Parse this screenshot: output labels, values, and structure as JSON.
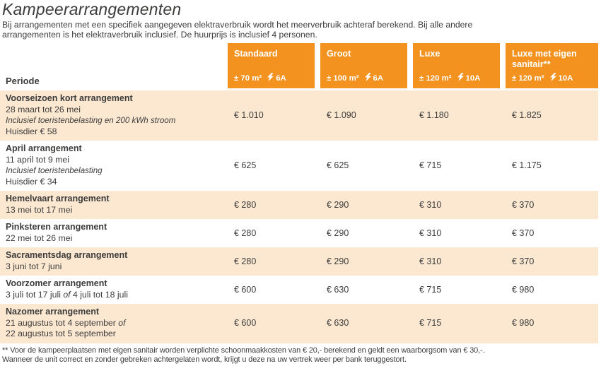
{
  "page": {
    "title": "Kampeerarrangementen",
    "intro_line1": "Bij arrangementen met een specifiek aangegeven elektraverbruik wordt het meerverbruik achteraf berekend. Bij alle andere",
    "intro_line2": "arrangementen is het elektraverbruik inclusief. De huurprijs is inclusief 4 personen.",
    "footnote_line1": "** Voor de kampeerplaatsen met eigen sanitair worden verplichte schoonmaakkosten van € 20,- berekend en geldt een waarborgsom van € 30,-.",
    "footnote_line2": "Wanneer de unit correct en zonder gebreken achtergelaten wordt, krijgt u deze na uw vertrek weer per bank teruggestort."
  },
  "table": {
    "period_header": "Periode",
    "columns": [
      {
        "name": "Standaard",
        "area": "± 70 m²",
        "amps": "6A"
      },
      {
        "name": "Groot",
        "area": "± 100 m²",
        "amps": "6A"
      },
      {
        "name": "Luxe",
        "area": "± 120 m²",
        "amps": "10A"
      },
      {
        "name": "Luxe met eigen sanitair**",
        "area": "± 120 m²",
        "amps": "10A"
      }
    ],
    "rows": [
      {
        "lines": [
          {
            "style": "title",
            "segments": [
              {
                "text": "Voorseizoen kort arrangement"
              }
            ]
          },
          {
            "style": "normal",
            "segments": [
              {
                "text": "28 maart tot 26 mei"
              }
            ]
          },
          {
            "style": "italic",
            "segments": [
              {
                "text": "Inclusief toeristenbelasting en 200 kWh stroom"
              }
            ]
          },
          {
            "style": "normal",
            "segments": [
              {
                "text": "Huisdier € 58"
              }
            ]
          }
        ],
        "prices": [
          "€ 1.010",
          "€ 1.090",
          "€ 1.180",
          "€ 1.825"
        ]
      },
      {
        "lines": [
          {
            "style": "title",
            "segments": [
              {
                "text": "April arrangement"
              }
            ]
          },
          {
            "style": "normal",
            "segments": [
              {
                "text": "11 april tot 9 mei"
              }
            ]
          },
          {
            "style": "italic",
            "segments": [
              {
                "text": "Inclusief toeristenbelasting"
              }
            ]
          },
          {
            "style": "normal",
            "segments": [
              {
                "text": "Huisdier € 34"
              }
            ]
          }
        ],
        "prices": [
          "€ 625",
          "€ 625",
          "€ 715",
          "€ 1.175"
        ]
      },
      {
        "lines": [
          {
            "style": "title",
            "segments": [
              {
                "text": "Hemelvaart arrangement"
              }
            ]
          },
          {
            "style": "normal",
            "segments": [
              {
                "text": "13 mei tot 17 mei"
              }
            ]
          }
        ],
        "prices": [
          "€ 280",
          "€ 290",
          "€ 310",
          "€ 370"
        ]
      },
      {
        "lines": [
          {
            "style": "title",
            "segments": [
              {
                "text": "Pinksteren arrangement"
              }
            ]
          },
          {
            "style": "normal",
            "segments": [
              {
                "text": "22 mei tot 26 mei"
              }
            ]
          }
        ],
        "prices": [
          "€ 280",
          "€ 290",
          "€ 310",
          "€ 370"
        ]
      },
      {
        "lines": [
          {
            "style": "title",
            "segments": [
              {
                "text": "Sacramentsdag arrangement"
              }
            ]
          },
          {
            "style": "normal",
            "segments": [
              {
                "text": "3 juni tot 7 juni"
              }
            ]
          }
        ],
        "prices": [
          "€ 280",
          "€ 290",
          "€ 310",
          "€ 370"
        ]
      },
      {
        "lines": [
          {
            "style": "title",
            "segments": [
              {
                "text": "Voorzomer arrangement"
              }
            ]
          },
          {
            "style": "normal",
            "segments": [
              {
                "text": "3 juli tot 17 juli "
              },
              {
                "text": "of",
                "italic": true
              },
              {
                "text": " 4 juli tot 18 juli"
              }
            ]
          }
        ],
        "prices": [
          "€ 600",
          "€ 630",
          "€ 715",
          "€ 980"
        ]
      },
      {
        "lines": [
          {
            "style": "title",
            "segments": [
              {
                "text": "Nazomer arrangement"
              }
            ]
          },
          {
            "style": "normal",
            "segments": [
              {
                "text": "21 augustus tot 4 september "
              },
              {
                "text": "of",
                "italic": true
              }
            ]
          },
          {
            "style": "normal",
            "segments": [
              {
                "text": "22 augustus tot 5 september"
              }
            ]
          }
        ],
        "prices": [
          "€ 600",
          "€ 630",
          "€ 715",
          "€ 980"
        ]
      }
    ]
  },
  "colors": {
    "accent_orange": "#f3921f",
    "row_band": "#fce8d1",
    "text_dark": "#3c3c3b",
    "header_text": "#ffffff"
  }
}
